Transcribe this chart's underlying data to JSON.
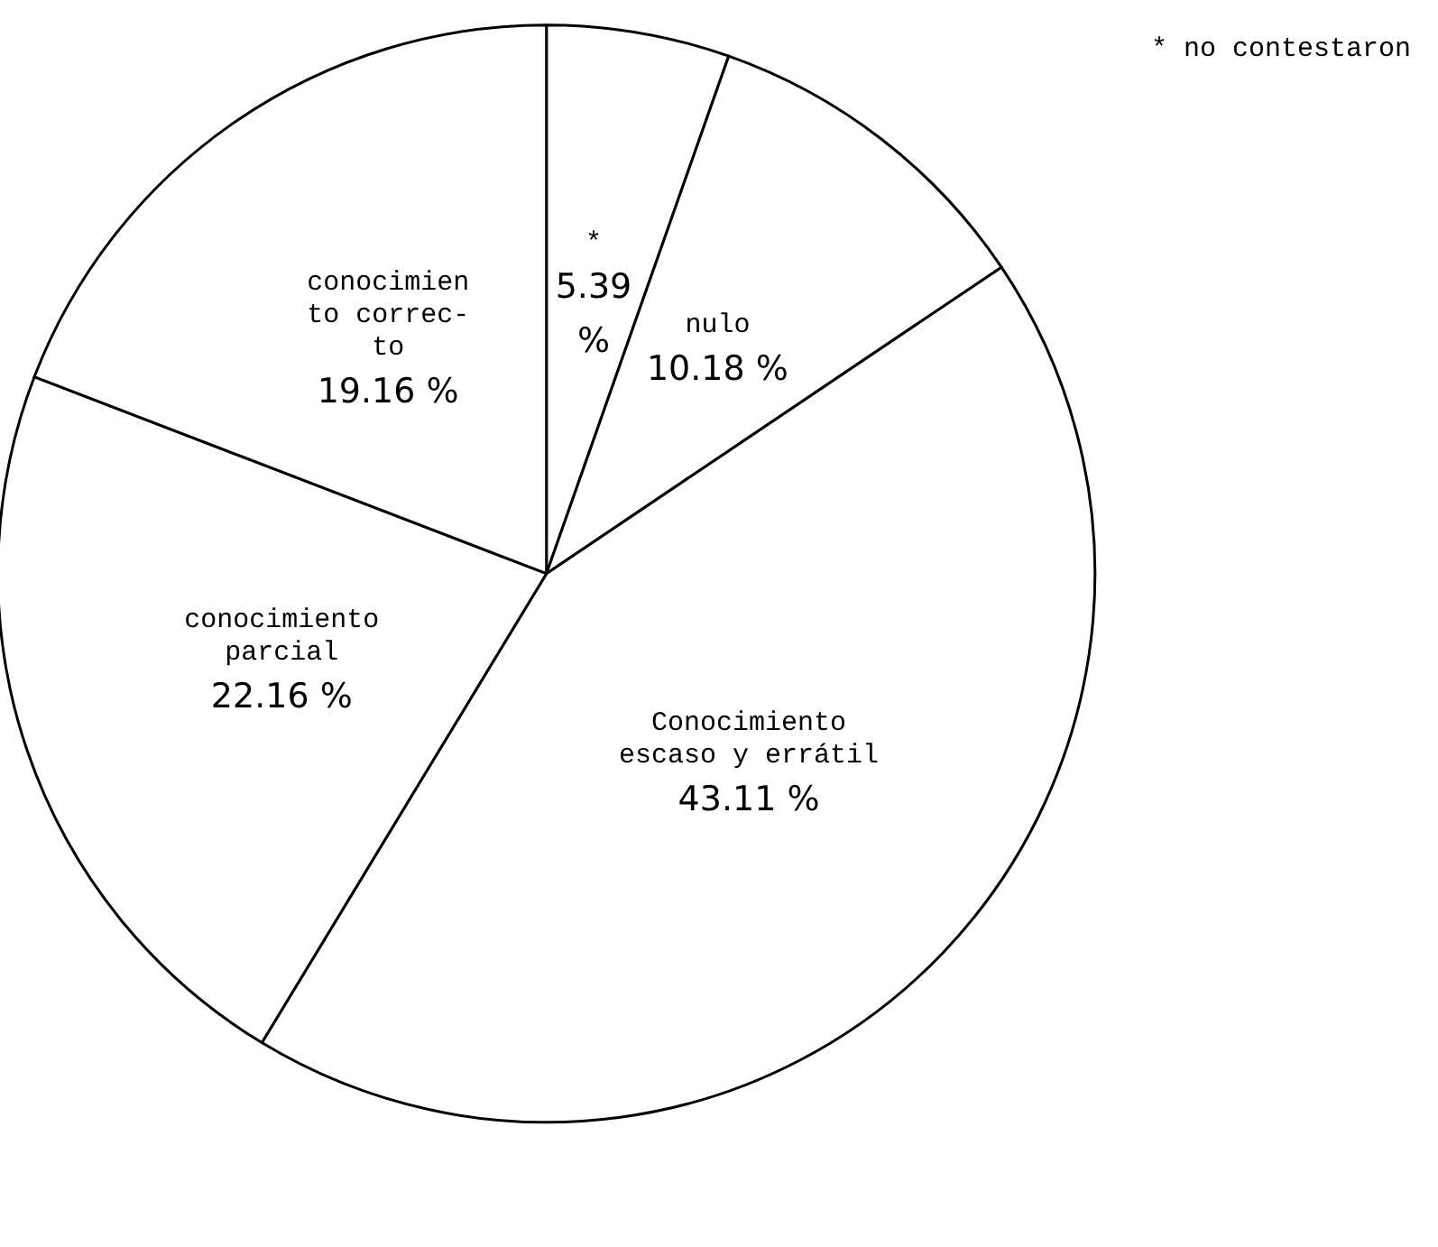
{
  "chart_data": {
    "type": "pie",
    "categories": [
      "*",
      "nulo",
      "Conocimiento\nescaso y errátil",
      "conocimiento\nparcial",
      "conocimien\nto correc-\nto"
    ],
    "values": [
      5.39,
      10.18,
      43.11,
      22.16,
      19.16
    ],
    "colors": [
      "#ffffff",
      "#ffffff",
      "#ffffff",
      "#ffffff",
      "#ffffff"
    ],
    "value_labels": [
      "5.39\n%",
      "10.18 %",
      "43.11 %",
      "22.16 %",
      "19.16 %"
    ],
    "legend": false,
    "annotations": [
      "* no contestaron"
    ]
  }
}
